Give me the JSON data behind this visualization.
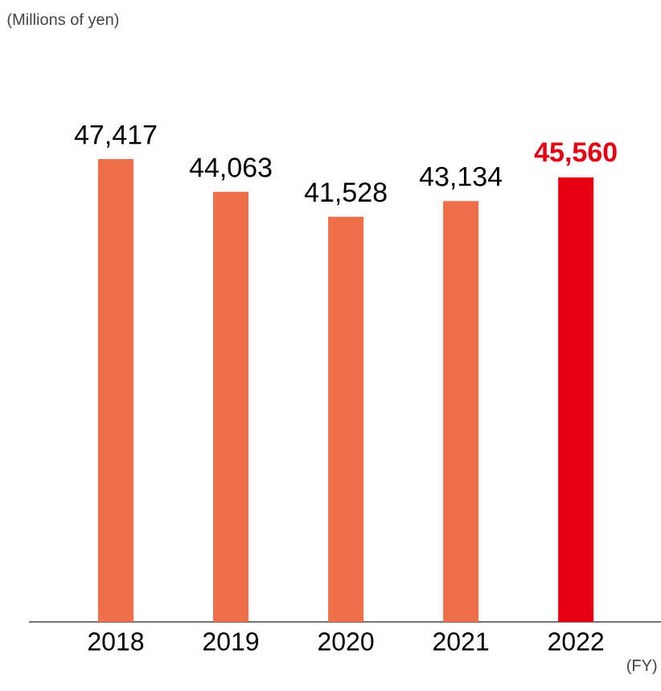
{
  "chart_data": {
    "type": "bar",
    "annotations": [
      "(Millions of yen)"
    ],
    "xlabel": "(FY)",
    "categories": [
      "2018",
      "2019",
      "2020",
      "2021",
      "2022"
    ],
    "values": [
      47417,
      44063,
      41528,
      43134,
      45560
    ],
    "colors": [
      "#ee6f4a",
      "#ee6f4a",
      "#ee6f4a",
      "#ee6f4a",
      "#e60012"
    ],
    "value_labels": [
      "47,417",
      "44,063",
      "41,528",
      "43,134",
      "45,560"
    ]
  }
}
